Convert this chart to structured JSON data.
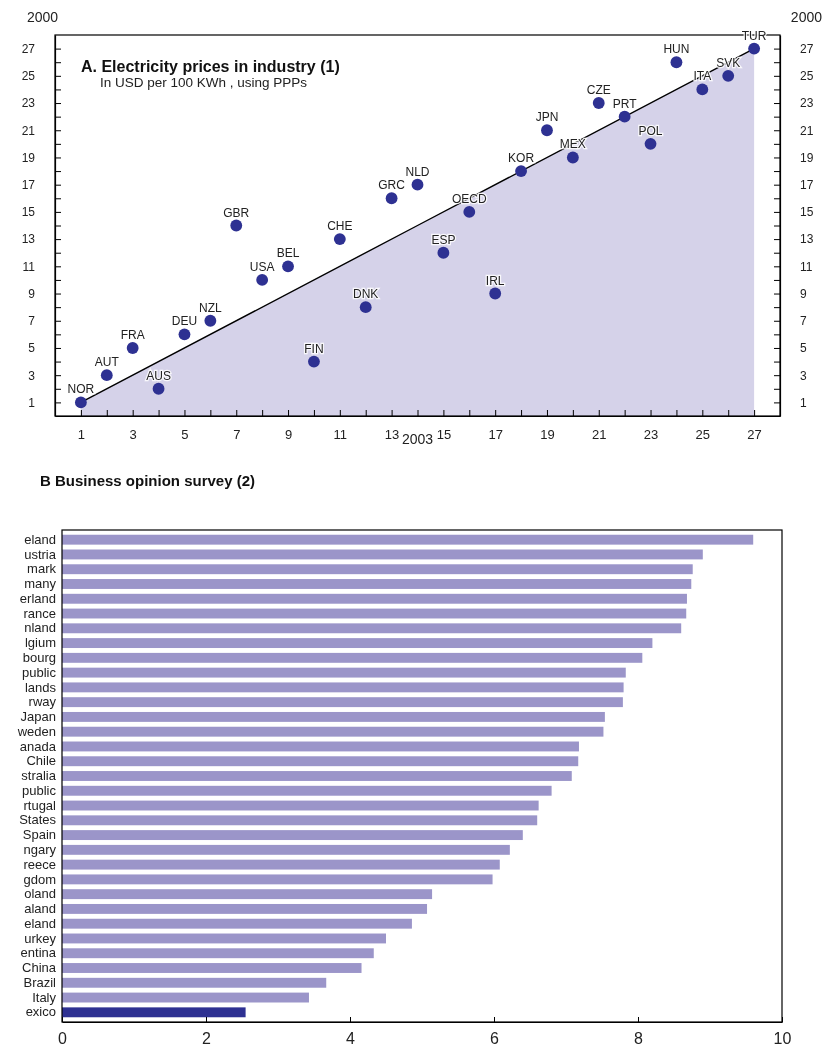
{
  "chart_data": [
    {
      "type": "scatter",
      "title": "A. Electricity prices in industry (1)",
      "subtitle": "In USD per 100 KWh , using PPPs",
      "xlabel": "2003",
      "ylabel": "2000",
      "y2label": "2000",
      "xlim": [
        0,
        28
      ],
      "ylim": [
        0,
        28
      ],
      "y2lim": [
        0,
        28
      ],
      "xticks": [
        1,
        {
          "value": 2,
          "label": null
        },
        3,
        {
          "value": 4,
          "label": null
        },
        5,
        {
          "value": 6,
          "label": null
        },
        7,
        {
          "value": 8,
          "label": null
        },
        9,
        {
          "value": 10,
          "label": null
        },
        11,
        {
          "value": 12,
          "label": null
        },
        13,
        {
          "value": 14,
          "label": null
        },
        15,
        {
          "value": 16,
          "label": null
        },
        17,
        {
          "value": 18,
          "label": null
        },
        19,
        {
          "value": 20,
          "label": null
        },
        21,
        {
          "value": 22,
          "label": null
        },
        23,
        {
          "value": 24,
          "label": null
        },
        25,
        {
          "value": 26,
          "label": null
        },
        27
      ],
      "yticks": [
        1,
        {
          "value": 2,
          "label": null
        },
        3,
        {
          "value": 4,
          "label": null
        },
        5,
        {
          "value": 6,
          "label": null
        },
        7,
        {
          "value": 8,
          "label": null
        },
        9,
        {
          "value": 10,
          "label": null
        },
        11,
        {
          "value": 12,
          "label": null
        },
        13,
        {
          "value": 14,
          "label": null
        },
        15,
        {
          "value": 16,
          "label": null
        },
        17,
        {
          "value": 18,
          "label": null
        },
        19,
        {
          "value": 20,
          "label": null
        },
        21,
        {
          "value": 22,
          "label": null
        },
        23,
        {
          "value": 24,
          "label": null
        },
        25,
        {
          "value": 26,
          "label": null
        },
        27
      ],
      "y2ticks": [
        1,
        {
          "value": 2,
          "label": null
        },
        3,
        {
          "value": 4,
          "label": null
        },
        5,
        {
          "value": 6,
          "label": null
        },
        7,
        {
          "value": 8,
          "label": null
        },
        9,
        {
          "value": 10,
          "label": null
        },
        11,
        {
          "value": 12,
          "label": null
        },
        13,
        {
          "value": 14,
          "label": null
        },
        15,
        {
          "value": 16,
          "label": null
        },
        17,
        {
          "value": 18,
          "label": null
        },
        19,
        {
          "value": 20,
          "label": null
        },
        21,
        {
          "value": 22,
          "label": null
        },
        23,
        {
          "value": 24,
          "label": null
        },
        25,
        {
          "value": 26,
          "label": null
        },
        27
      ],
      "series": [
        {
          "type": "area",
          "color": "#d5d2e9",
          "marker": "none",
          "x": [
            1,
            14,
            27
          ],
          "values": [
            1,
            14,
            27
          ]
        },
        {
          "type": "scatter",
          "color": "#2e3192",
          "marker": "circle",
          "x": [
            1,
            2,
            3,
            4,
            5,
            6,
            7,
            8,
            9,
            10,
            11,
            12,
            13,
            14,
            15,
            16,
            17,
            18,
            19,
            20,
            21,
            22,
            23,
            24,
            25,
            26,
            27
          ],
          "values": [
            1,
            3,
            5,
            2,
            6,
            7,
            14,
            10,
            11,
            4,
            13,
            8,
            16,
            17,
            12,
            15,
            9,
            18,
            21,
            19,
            23,
            22,
            20,
            26,
            24,
            25,
            27
          ]
        }
      ],
      "annotations": [
        {
          "text": "NOR",
          "x": 1,
          "y": 1
        },
        {
          "text": "AUT",
          "x": 2,
          "y": 3
        },
        {
          "text": "FRA",
          "x": 3,
          "y": 5
        },
        {
          "text": "AUS",
          "x": 4,
          "y": 2
        },
        {
          "text": "DEU",
          "x": 5,
          "y": 6
        },
        {
          "text": "NZL",
          "x": 6,
          "y": 7
        },
        {
          "text": "GBR",
          "x": 7,
          "y": 14
        },
        {
          "text": "USA",
          "x": 8,
          "y": 10
        },
        {
          "text": "BEL",
          "x": 9,
          "y": 11
        },
        {
          "text": "FIN",
          "x": 10,
          "y": 4
        },
        {
          "text": "CHE",
          "x": 11,
          "y": 13
        },
        {
          "text": "DNK",
          "x": 12,
          "y": 8
        },
        {
          "text": "GRC",
          "x": 13,
          "y": 16
        },
        {
          "text": "NLD",
          "x": 14,
          "y": 17
        },
        {
          "text": "ESP",
          "x": 15,
          "y": 12
        },
        {
          "text": "OECD",
          "x": 16,
          "y": 15
        },
        {
          "text": "IRL",
          "x": 17,
          "y": 9
        },
        {
          "text": "KOR",
          "x": 18,
          "y": 18
        },
        {
          "text": "JPN",
          "x": 19,
          "y": 21
        },
        {
          "text": "MEX",
          "x": 20,
          "y": 19
        },
        {
          "text": "CZE",
          "x": 21,
          "y": 23
        },
        {
          "text": "PRT",
          "x": 22,
          "y": 22
        },
        {
          "text": "POL",
          "x": 23,
          "y": 20
        },
        {
          "text": "HUN",
          "x": 24,
          "y": 26
        },
        {
          "text": "ITA",
          "x": 25,
          "y": 24
        },
        {
          "text": "SVK",
          "x": 26,
          "y": 25
        },
        {
          "text": "TUR",
          "x": 27,
          "y": 27
        }
      ]
    },
    {
      "type": "bar",
      "orientation": "horizontal",
      "title": "B Business opinion survey (2)",
      "categories": [
        "eland",
        "ustria",
        "mark",
        "many",
        "erland",
        "rance",
        "nland",
        "lgium",
        "bourg",
        "public",
        "lands",
        "rway",
        "Japan",
        "weden",
        "anada",
        "Chile",
        "stralia",
        "public",
        "rtugal",
        "States",
        "Spain",
        "ngary",
        "reece",
        "gdom",
        "oland",
        "aland",
        "eland",
        "urkey",
        "entina",
        "China",
        "Brazil",
        "Italy",
        "exico"
      ],
      "values": [
        9.6,
        8.9,
        8.76,
        8.74,
        8.68,
        8.67,
        8.6,
        8.2,
        8.06,
        7.83,
        7.8,
        7.79,
        7.54,
        7.52,
        7.18,
        7.17,
        7.08,
        6.8,
        6.62,
        6.6,
        6.4,
        6.22,
        6.08,
        5.98,
        5.14,
        5.07,
        4.86,
        4.5,
        4.33,
        4.16,
        3.67,
        3.43,
        2.55
      ],
      "colors": [
        "#9b95c9",
        "#9b95c9",
        "#9b95c9",
        "#9b95c9",
        "#9b95c9",
        "#9b95c9",
        "#9b95c9",
        "#9b95c9",
        "#9b95c9",
        "#9b95c9",
        "#9b95c9",
        "#9b95c9",
        "#9b95c9",
        "#9b95c9",
        "#9b95c9",
        "#9b95c9",
        "#9b95c9",
        "#9b95c9",
        "#9b95c9",
        "#9b95c9",
        "#9b95c9",
        "#9b95c9",
        "#9b95c9",
        "#9b95c9",
        "#9b95c9",
        "#9b95c9",
        "#9b95c9",
        "#9b95c9",
        "#9b95c9",
        "#9b95c9",
        "#9b95c9",
        "#9b95c9",
        "#2e3192"
      ],
      "xlim": [
        0,
        10
      ],
      "xticks": [
        0,
        2,
        4,
        6,
        8,
        10
      ]
    }
  ]
}
